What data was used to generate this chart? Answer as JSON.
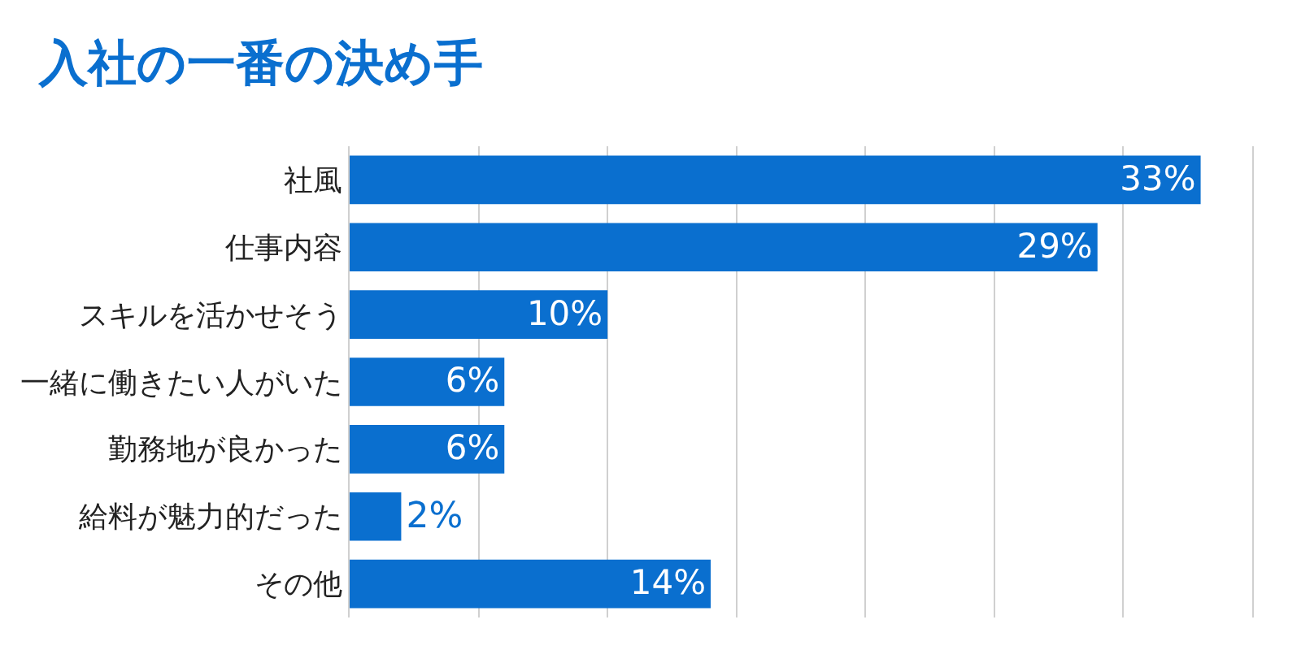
{
  "chart_data": {
    "type": "bar",
    "orientation": "horizontal",
    "title": "入社の一番の決め手",
    "categories": [
      "社風",
      "仕事内容",
      "スキルを活かせそう",
      "一緒に働きたい人がいた",
      "勤務地が良かった",
      "給料が魅力的だった",
      "その他"
    ],
    "values": [
      33,
      29,
      10,
      6,
      6,
      2,
      14
    ],
    "value_labels": [
      "33%",
      "29%",
      "10%",
      "6%",
      "6%",
      "2%",
      "14%"
    ],
    "color": "#0a6fcf",
    "xlim": [
      0,
      35
    ],
    "xticks": [
      {
        "value": 0,
        "label": null
      },
      {
        "value": 5,
        "label": null
      },
      {
        "value": 10,
        "label": null
      },
      {
        "value": 15,
        "label": null
      },
      {
        "value": 20,
        "label": null
      },
      {
        "value": 25,
        "label": null
      },
      {
        "value": 30,
        "label": null
      },
      {
        "value": 35,
        "label": null
      }
    ],
    "grid": "x",
    "legend": false,
    "tick_labels": "y"
  }
}
